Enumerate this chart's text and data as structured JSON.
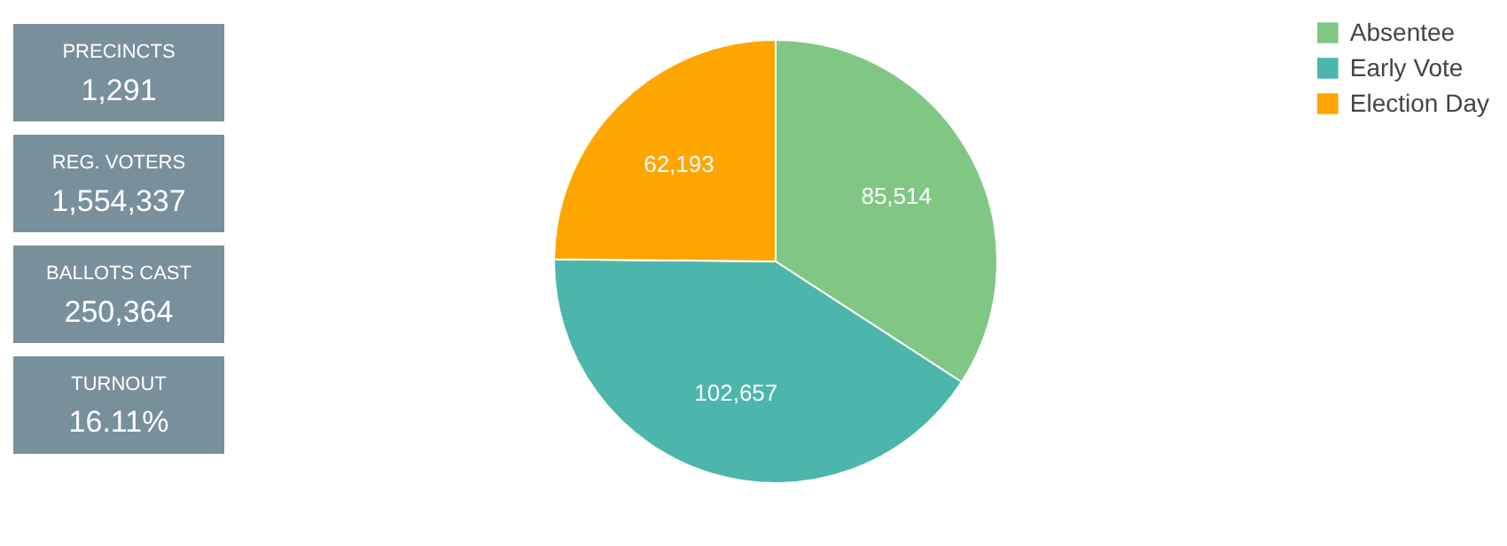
{
  "chart_data": [
    {
      "type": "other",
      "annotations": [
        "PRECINCTS",
        "1,291",
        "REG. VOTERS",
        "1,554,337",
        "BALLOTS CAST",
        "250,364",
        "TURNOUT",
        "16.11%"
      ],
      "color": "#78909c"
    },
    {
      "type": "pie",
      "categories": [
        "Absentee",
        "Early Vote",
        "Election Day"
      ],
      "values": [
        85514,
        102657,
        62193
      ],
      "colors": [
        "#81c784",
        "#4db6ac",
        "#ffa500"
      ],
      "value_labels": [
        "85,514",
        "102,657",
        "62,193"
      ],
      "legend": "top right"
    }
  ]
}
